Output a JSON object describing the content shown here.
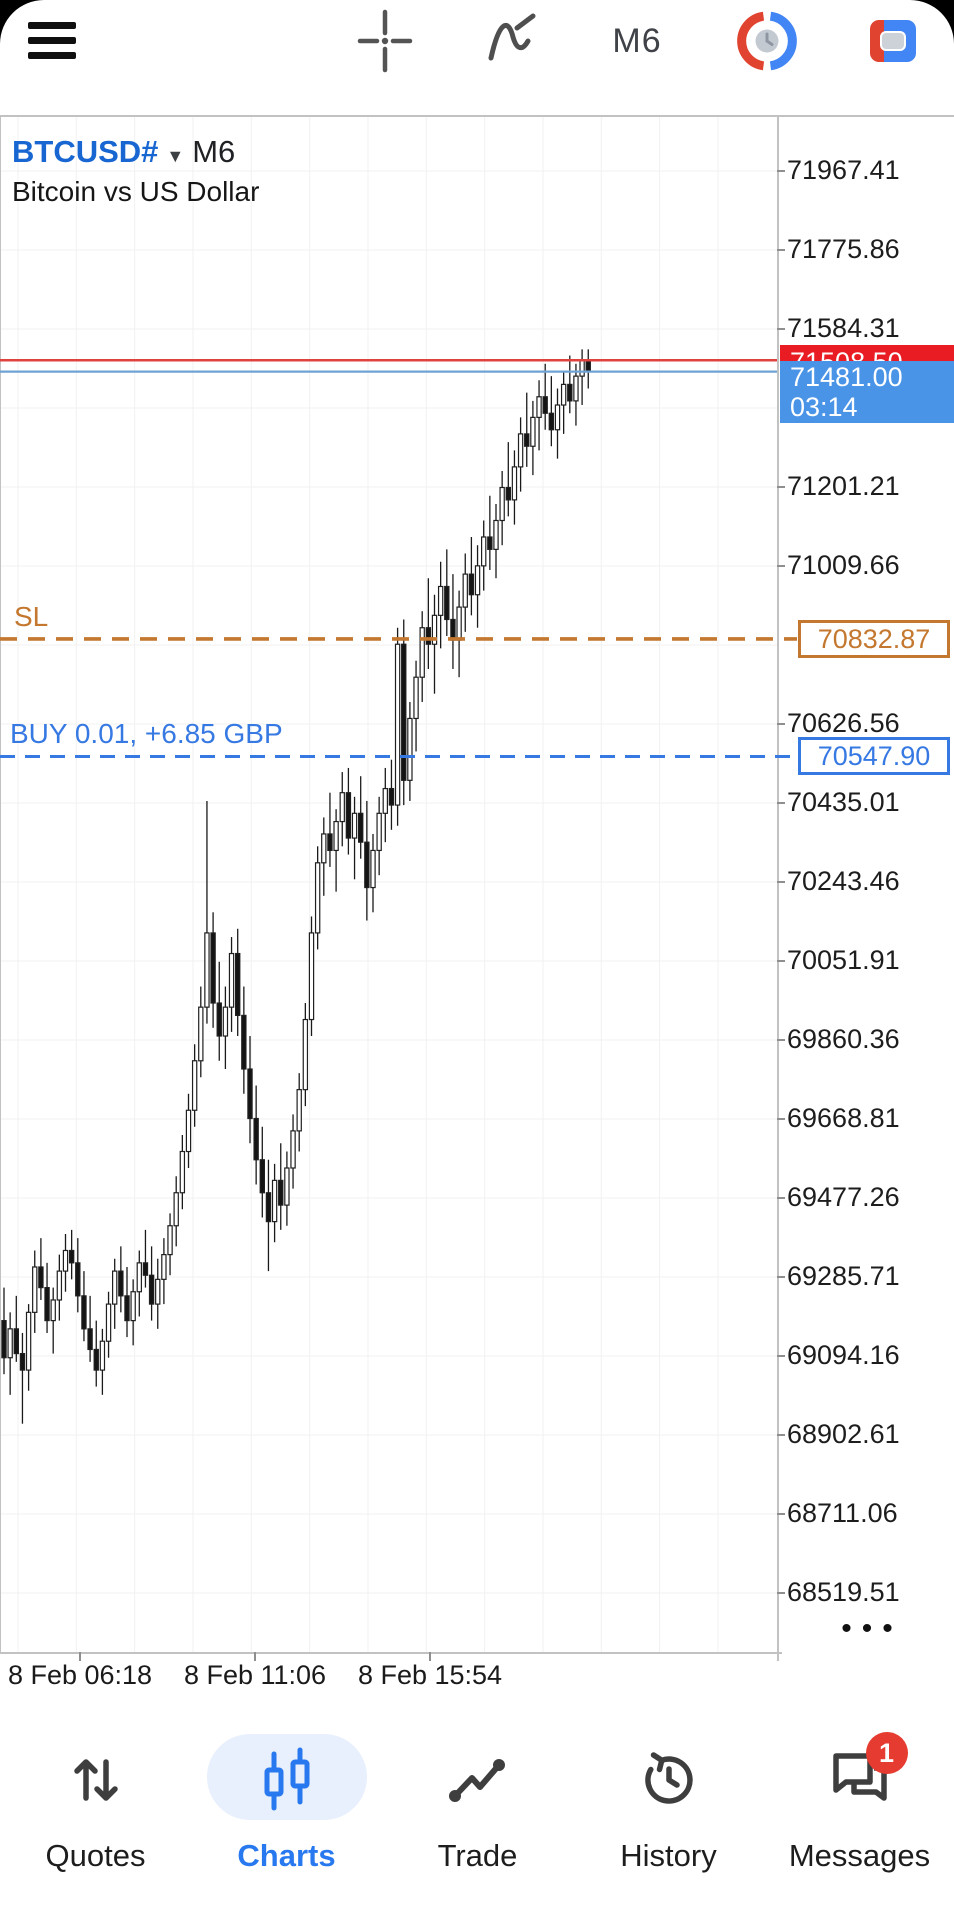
{
  "toolbar": {
    "timeframe_label": "M6"
  },
  "chart": {
    "symbol": "BTCUSD#",
    "timeframe": "M6",
    "description": "Bitcoin vs US Dollar"
  },
  "chart_data": {
    "type": "candlestick",
    "symbol": "BTCUSD#",
    "period": "M6",
    "title": "Bitcoin vs US Dollar",
    "grid": true,
    "ylim": [
      68376,
      72000
    ],
    "y_axis_labels": [
      "71967.41",
      "71775.86",
      "71584.31",
      "71201.21",
      "71009.66",
      "70626.56",
      "70435.01",
      "70243.46",
      "70051.91",
      "69860.36",
      "69668.81",
      "69477.26",
      "69285.71",
      "69094.16",
      "68902.61",
      "68711.06",
      "68519.51"
    ],
    "x_axis_labels": [
      "8 Feb 06:18",
      "8 Feb 11:06",
      "8 Feb 15:54"
    ],
    "more_indicator": "•••",
    "price_lines": {
      "ask": {
        "price": 71508.5,
        "tag": "71508.50",
        "line_color": "#e0433d",
        "tag_bg": "#e91c23",
        "style": "solid"
      },
      "bid": {
        "price": 71481.0,
        "tag": "71481.00",
        "time": "03:14",
        "line_color": "#6fa3d3",
        "tag_bg": "#4a94e8",
        "style": "solid"
      },
      "sl": {
        "price": 70832.87,
        "label": "SL",
        "tag": "70832.87",
        "color": "#c4772e",
        "style": "dashed"
      },
      "position": {
        "price": 70547.9,
        "label": "BUY 0.01,  +6.85 GBP",
        "tag": "70547.90",
        "color": "#3779e3",
        "style": "dashed"
      }
    },
    "candles": [
      [
        69180,
        69260,
        69050,
        69090
      ],
      [
        69090,
        69200,
        69000,
        69160
      ],
      [
        69160,
        69240,
        69080,
        69100
      ],
      [
        69100,
        69150,
        68930,
        69060
      ],
      [
        69060,
        69220,
        69010,
        69200
      ],
      [
        69200,
        69350,
        69150,
        69310
      ],
      [
        69310,
        69380,
        69230,
        69260
      ],
      [
        69260,
        69320,
        69150,
        69180
      ],
      [
        69180,
        69260,
        69100,
        69230
      ],
      [
        69230,
        69340,
        69180,
        69300
      ],
      [
        69300,
        69390,
        69250,
        69350
      ],
      [
        69350,
        69400,
        69280,
        69320
      ],
      [
        69320,
        69380,
        69200,
        69240
      ],
      [
        69240,
        69300,
        69130,
        69160
      ],
      [
        69160,
        69240,
        69080,
        69110
      ],
      [
        69110,
        69180,
        69020,
        69060
      ],
      [
        69060,
        69160,
        69000,
        69130
      ],
      [
        69130,
        69250,
        69090,
        69220
      ],
      [
        69220,
        69330,
        69160,
        69300
      ],
      [
        69300,
        69360,
        69200,
        69240
      ],
      [
        69240,
        69310,
        69140,
        69180
      ],
      [
        69180,
        69280,
        69120,
        69250
      ],
      [
        69250,
        69350,
        69190,
        69320
      ],
      [
        69320,
        69400,
        69260,
        69290
      ],
      [
        69290,
        69360,
        69180,
        69220
      ],
      [
        69220,
        69330,
        69160,
        69280
      ],
      [
        69280,
        69380,
        69220,
        69340
      ],
      [
        69340,
        69440,
        69290,
        69410
      ],
      [
        69410,
        69530,
        69360,
        69490
      ],
      [
        69490,
        69630,
        69450,
        69590
      ],
      [
        69590,
        69730,
        69550,
        69690
      ],
      [
        69690,
        69850,
        69650,
        69810
      ],
      [
        69810,
        69990,
        69770,
        69940
      ],
      [
        69940,
        70440,
        69900,
        70120
      ],
      [
        70120,
        70170,
        69890,
        69950
      ],
      [
        69950,
        70050,
        69810,
        69870
      ],
      [
        69870,
        69990,
        69790,
        69940
      ],
      [
        69940,
        70110,
        69880,
        70070
      ],
      [
        70070,
        70130,
        69870,
        69920
      ],
      [
        69920,
        69990,
        69730,
        69790
      ],
      [
        69790,
        69870,
        69610,
        69670
      ],
      [
        69670,
        69750,
        69510,
        69570
      ],
      [
        69570,
        69650,
        69430,
        69490
      ],
      [
        69490,
        69570,
        69300,
        69420
      ],
      [
        69420,
        69560,
        69370,
        69520
      ],
      [
        69520,
        69610,
        69400,
        69460
      ],
      [
        69460,
        69590,
        69410,
        69550
      ],
      [
        69550,
        69680,
        69500,
        69640
      ],
      [
        69640,
        69780,
        69590,
        69740
      ],
      [
        69740,
        69950,
        69700,
        69910
      ],
      [
        69910,
        70160,
        69870,
        70120
      ],
      [
        70120,
        70330,
        70080,
        70290
      ],
      [
        70290,
        70400,
        70210,
        70360
      ],
      [
        70360,
        70460,
        70280,
        70320
      ],
      [
        70320,
        70420,
        70220,
        70390
      ],
      [
        70390,
        70510,
        70330,
        70460
      ],
      [
        70460,
        70520,
        70310,
        70350
      ],
      [
        70350,
        70450,
        70250,
        70410
      ],
      [
        70410,
        70500,
        70300,
        70340
      ],
      [
        70340,
        70440,
        70150,
        70230
      ],
      [
        70230,
        70360,
        70170,
        70320
      ],
      [
        70320,
        70450,
        70260,
        70410
      ],
      [
        70410,
        70520,
        70340,
        70470
      ],
      [
        70470,
        70540,
        70370,
        70430
      ],
      [
        70430,
        70860,
        70380,
        70820
      ],
      [
        70820,
        70880,
        70430,
        70490
      ],
      [
        70490,
        70680,
        70440,
        70640
      ],
      [
        70640,
        70780,
        70560,
        70740
      ],
      [
        70740,
        70900,
        70680,
        70860
      ],
      [
        70860,
        70980,
        70760,
        70820
      ],
      [
        70820,
        70940,
        70700,
        70890
      ],
      [
        70890,
        71020,
        70810,
        70960
      ],
      [
        70960,
        71050,
        70840,
        70880
      ],
      [
        70880,
        70990,
        70760,
        70830
      ],
      [
        70830,
        70950,
        70740,
        70910
      ],
      [
        70910,
        71040,
        70850,
        70990
      ],
      [
        70990,
        71080,
        70890,
        70940
      ],
      [
        70940,
        71060,
        70860,
        71010
      ],
      [
        71010,
        71120,
        70950,
        71080
      ],
      [
        71080,
        71180,
        71000,
        71050
      ],
      [
        71050,
        71160,
        70980,
        71120
      ],
      [
        71120,
        71240,
        71060,
        71200
      ],
      [
        71200,
        71310,
        71130,
        71170
      ],
      [
        71170,
        71290,
        71110,
        71250
      ],
      [
        71250,
        71370,
        71190,
        71330
      ],
      [
        71330,
        71430,
        71250,
        71300
      ],
      [
        71300,
        71410,
        71230,
        71370
      ],
      [
        71370,
        71460,
        71290,
        71420
      ],
      [
        71420,
        71500,
        71340,
        71380
      ],
      [
        71380,
        71470,
        71300,
        71340
      ],
      [
        71340,
        71440,
        71270,
        71400
      ],
      [
        71400,
        71480,
        71330,
        71450
      ],
      [
        71450,
        71520,
        71380,
        71410
      ],
      [
        71410,
        71500,
        71350,
        71470
      ],
      [
        71470,
        71535,
        71400,
        71510
      ],
      [
        71510,
        71535,
        71440,
        71481
      ]
    ]
  },
  "bottom_nav": {
    "items": [
      {
        "label": "Quotes",
        "active": false
      },
      {
        "label": "Charts",
        "active": true
      },
      {
        "label": "Trade",
        "active": false
      },
      {
        "label": "History",
        "active": false
      },
      {
        "label": "Messages",
        "active": false,
        "badge": "1"
      }
    ]
  },
  "colors": {
    "symbol_blue": "#1866d1",
    "nav_active_blue": "#2879f0",
    "badge_red": "#e53b30",
    "candle_down": "#141414",
    "candle_up_fill": "#ffffff"
  }
}
